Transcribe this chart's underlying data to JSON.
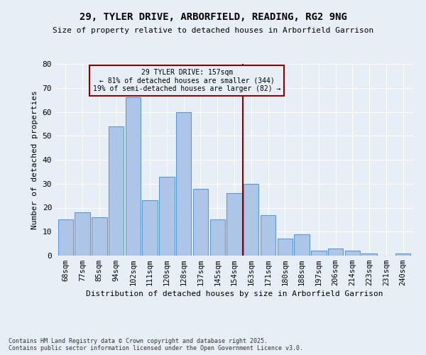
{
  "title": "29, TYLER DRIVE, ARBORFIELD, READING, RG2 9NG",
  "subtitle": "Size of property relative to detached houses in Arborfield Garrison",
  "xlabel": "Distribution of detached houses by size in Arborfield Garrison",
  "ylabel": "Number of detached properties",
  "footnote1": "Contains HM Land Registry data © Crown copyright and database right 2025.",
  "footnote2": "Contains public sector information licensed under the Open Government Licence v3.0.",
  "categories": [
    "68sqm",
    "77sqm",
    "85sqm",
    "94sqm",
    "102sqm",
    "111sqm",
    "120sqm",
    "128sqm",
    "137sqm",
    "145sqm",
    "154sqm",
    "163sqm",
    "171sqm",
    "180sqm",
    "188sqm",
    "197sqm",
    "206sqm",
    "214sqm",
    "223sqm",
    "231sqm",
    "240sqm"
  ],
  "values": [
    15,
    18,
    16,
    54,
    66,
    23,
    33,
    60,
    28,
    15,
    26,
    30,
    17,
    7,
    9,
    2,
    3,
    2,
    1,
    0,
    1
  ],
  "bar_color": "#adc6e8",
  "bar_edge_color": "#5b9bd5",
  "background_color": "#e8eef6",
  "grid_color": "#ffffff",
  "vline_x": 10.5,
  "vline_color": "#8b0000",
  "annotation_text": "29 TYLER DRIVE: 157sqm\n← 81% of detached houses are smaller (344)\n19% of semi-detached houses are larger (82) →",
  "annotation_box_color": "#8b0000",
  "ylim": [
    0,
    80
  ],
  "yticks": [
    0,
    10,
    20,
    30,
    40,
    50,
    60,
    70,
    80
  ]
}
